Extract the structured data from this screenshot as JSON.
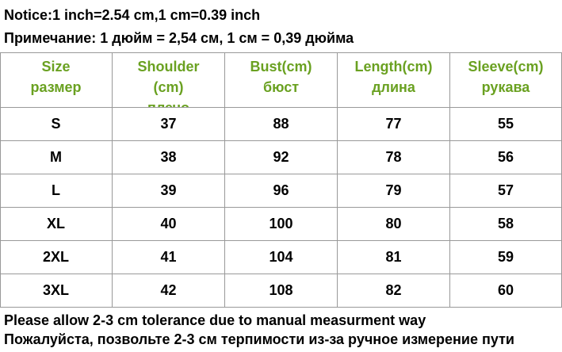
{
  "notice": {
    "line1": "Notice:1 inch=2.54 cm,1 cm=0.39 inch",
    "line2": "Примечание: 1 дюйм = 2,54 см, 1 см = 0,39 дюйма"
  },
  "table": {
    "header": [
      [
        "Size",
        "размер"
      ],
      [
        "Shoulder",
        "(cm)",
        "плечо"
      ],
      [
        "Bust(cm)",
        "бюст"
      ],
      [
        "Length(cm)",
        "длина"
      ],
      [
        "Sleeve(cm)",
        "рукава"
      ]
    ],
    "rows": [
      [
        "S",
        37,
        88,
        77,
        55
      ],
      [
        "M",
        38,
        92,
        78,
        56
      ],
      [
        "L",
        39,
        96,
        79,
        57
      ],
      [
        "XL",
        40,
        100,
        80,
        58
      ],
      [
        "2XL",
        41,
        104,
        81,
        59
      ],
      [
        "3XL",
        42,
        108,
        82,
        60
      ]
    ]
  },
  "footer": {
    "line1": "Please allow 2-3 cm tolerance due to manual measurment way",
    "line2": "Пожалуйста, позвольте 2-3 см терпимости из-за ручное измерение пути"
  }
}
